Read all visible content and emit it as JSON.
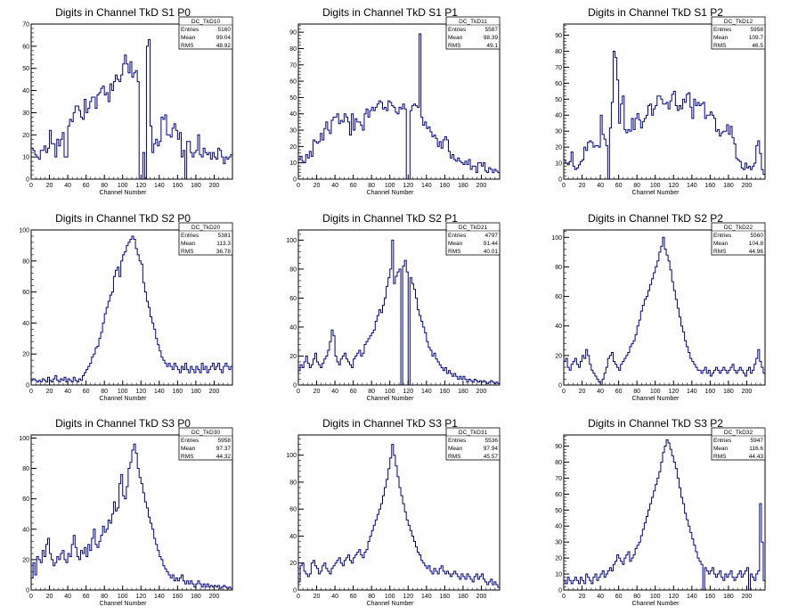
{
  "chart_data": [
    {
      "type": "histogram",
      "title": "Digits in Channel TkD S1 P0",
      "xlabel": "Channel Number",
      "xlim": [
        0,
        220
      ],
      "ylim": [
        0,
        70
      ],
      "xticks": [
        0,
        20,
        40,
        60,
        80,
        100,
        120,
        140,
        160,
        180,
        200
      ],
      "yticks": [
        0,
        10,
        20,
        30,
        40,
        50,
        60,
        70
      ],
      "stats": {
        "name": "DC_TkD10",
        "rows": [
          [
            "Entries",
            "5160"
          ],
          [
            "Mean",
            "99.04"
          ],
          [
            "RMS",
            "48.92"
          ]
        ]
      },
      "x_start": 0,
      "bin_width": 2,
      "values": [
        14,
        13,
        11,
        10,
        9,
        13,
        13,
        15,
        12,
        14,
        22,
        16,
        16,
        10,
        18,
        15,
        18,
        21,
        10,
        10,
        24,
        27,
        26,
        30,
        33,
        33,
        31,
        28,
        27,
        36,
        30,
        32,
        35,
        37,
        37,
        32,
        38,
        39,
        41,
        42,
        38,
        39,
        35,
        43,
        40,
        44,
        47,
        45,
        44,
        47,
        52,
        56,
        52,
        48,
        53,
        46,
        48,
        49,
        44,
        0,
        0,
        12,
        0,
        60,
        63,
        24,
        12,
        16,
        18,
        15,
        17,
        28,
        27,
        29,
        20,
        20,
        19,
        23,
        25,
        22,
        18,
        21,
        10,
        13,
        0,
        17,
        17,
        12,
        10,
        12,
        13,
        20,
        11,
        10,
        14,
        12,
        11,
        12,
        9,
        12,
        10,
        9,
        14,
        13,
        10,
        7,
        10,
        9,
        10,
        11
      ]
    },
    {
      "type": "histogram",
      "title": "Digits in Channel TkD S1 P1",
      "xlabel": "Channel Number",
      "xlim": [
        0,
        220
      ],
      "ylim": [
        0,
        95
      ],
      "xticks": [
        0,
        20,
        40,
        60,
        80,
        100,
        120,
        140,
        160,
        180,
        200
      ],
      "yticks": [
        0,
        10,
        20,
        30,
        40,
        50,
        60,
        70,
        80,
        90
      ],
      "stats": {
        "name": "DC_TkD11",
        "rows": [
          [
            "Entries",
            "5587"
          ],
          [
            "Mean",
            "98.39"
          ],
          [
            "RMS",
            "49.1"
          ]
        ]
      },
      "x_start": 0,
      "bin_width": 2,
      "values": [
        12,
        14,
        11,
        10,
        15,
        13,
        17,
        14,
        24,
        23,
        22,
        23,
        28,
        24,
        31,
        35,
        30,
        28,
        36,
        38,
        38,
        40,
        34,
        36,
        35,
        40,
        38,
        35,
        27,
        40,
        30,
        37,
        35,
        35,
        33,
        30,
        40,
        43,
        38,
        42,
        44,
        42,
        44,
        46,
        48,
        47,
        43,
        44,
        42,
        48,
        47,
        45,
        44,
        41,
        40,
        44,
        43,
        46,
        43,
        0,
        0,
        42,
        45,
        46,
        45,
        44,
        89,
        38,
        33,
        35,
        31,
        32,
        29,
        26,
        27,
        25,
        20,
        23,
        19,
        24,
        26,
        24,
        17,
        13,
        15,
        12,
        11,
        13,
        11,
        10,
        9,
        11,
        9,
        12,
        6,
        8,
        8,
        4,
        10,
        10,
        8,
        10,
        5,
        4,
        7,
        6,
        4,
        6,
        5,
        4
      ]
    },
    {
      "type": "histogram",
      "title": "Digits in Channel TkD S1 P2",
      "xlabel": "Channel Number",
      "xlim": [
        0,
        220
      ],
      "ylim": [
        0,
        97
      ],
      "xticks": [
        0,
        20,
        40,
        60,
        80,
        100,
        120,
        140,
        160,
        180,
        200
      ],
      "yticks": [
        0,
        10,
        20,
        30,
        40,
        50,
        60,
        70,
        80,
        90
      ],
      "stats": {
        "name": "DC_TkD12",
        "rows": [
          [
            "Entries",
            "5958"
          ],
          [
            "Mean",
            "109.7"
          ],
          [
            "RMS",
            "46.5"
          ]
        ]
      },
      "x_start": 0,
      "bin_width": 2,
      "values": [
        12,
        10,
        9,
        11,
        17,
        8,
        6,
        7,
        9,
        11,
        12,
        20,
        18,
        23,
        24,
        23,
        20,
        21,
        21,
        20,
        40,
        28,
        25,
        21,
        0,
        32,
        48,
        80,
        76,
        62,
        35,
        47,
        52,
        31,
        29,
        31,
        30,
        38,
        31,
        38,
        41,
        37,
        32,
        36,
        38,
        40,
        46,
        47,
        40,
        44,
        46,
        52,
        52,
        50,
        47,
        47,
        48,
        44,
        49,
        53,
        55,
        46,
        43,
        46,
        44,
        50,
        48,
        53,
        54,
        45,
        38,
        50,
        46,
        48,
        46,
        47,
        48,
        38,
        40,
        40,
        42,
        40,
        38,
        30,
        31,
        27,
        29,
        30,
        30,
        34,
        28,
        33,
        26,
        22,
        13,
        12,
        11,
        7,
        6,
        10,
        7,
        8,
        6,
        8,
        10,
        21,
        24,
        16,
        6,
        3
      ]
    },
    {
      "type": "histogram",
      "title": "Digits in Channel TkD S2 P0",
      "xlabel": "Channel Number",
      "xlim": [
        0,
        220
      ],
      "ylim": [
        0,
        100
      ],
      "xticks": [
        0,
        20,
        40,
        60,
        80,
        100,
        120,
        140,
        160,
        180,
        200
      ],
      "yticks": [
        0,
        20,
        40,
        60,
        80,
        100
      ],
      "stats": {
        "name": "DC_TkD20",
        "rows": [
          [
            "Entries",
            "5381"
          ],
          [
            "Mean",
            "113.3"
          ],
          [
            "RMS",
            "36.78"
          ]
        ]
      },
      "x_start": 0,
      "bin_width": 2,
      "values": [
        3,
        4,
        3,
        2,
        3,
        2,
        4,
        3,
        2,
        5,
        3,
        2,
        4,
        6,
        3,
        2,
        4,
        3,
        5,
        2,
        4,
        3,
        2,
        5,
        3,
        2,
        4,
        3,
        6,
        8,
        10,
        12,
        14,
        18,
        20,
        24,
        25,
        30,
        34,
        40,
        46,
        50,
        54,
        58,
        60,
        70,
        74,
        76,
        70,
        80,
        84,
        86,
        90,
        92,
        94,
        96,
        94,
        88,
        84,
        80,
        78,
        66,
        60,
        54,
        50,
        44,
        40,
        36,
        30,
        26,
        22,
        18,
        16,
        14,
        12,
        14,
        12,
        10,
        14,
        12,
        10,
        8,
        12,
        10,
        14,
        10,
        8,
        12,
        10,
        8,
        12,
        10,
        8,
        14,
        10,
        12,
        8,
        10,
        12,
        14,
        10,
        12,
        14,
        10,
        8,
        12,
        14,
        12,
        10,
        12
      ]
    },
    {
      "type": "histogram",
      "title": "Digits in Channel TkD S2 P1",
      "xlabel": "Channel Number",
      "xlim": [
        0,
        220
      ],
      "ylim": [
        0,
        107
      ],
      "xticks": [
        0,
        20,
        40,
        60,
        80,
        100,
        120,
        140,
        160,
        180,
        200
      ],
      "yticks": [
        0,
        20,
        40,
        60,
        80,
        100
      ],
      "stats": {
        "name": "DC_TkD21",
        "rows": [
          [
            "Entries",
            "4797"
          ],
          [
            "Mean",
            "91.44"
          ],
          [
            "RMS",
            "40.01"
          ]
        ]
      },
      "x_start": 0,
      "bin_width": 2,
      "values": [
        10,
        14,
        12,
        16,
        20,
        15,
        12,
        14,
        18,
        22,
        16,
        14,
        12,
        15,
        18,
        20,
        24,
        30,
        38,
        34,
        20,
        16,
        14,
        18,
        20,
        22,
        18,
        16,
        14,
        12,
        18,
        20,
        22,
        24,
        20,
        22,
        28,
        30,
        32,
        34,
        36,
        38,
        44,
        48,
        52,
        50,
        55,
        60,
        68,
        74,
        80,
        100,
        70,
        75,
        78,
        80,
        0,
        82,
        86,
        78,
        0,
        74,
        70,
        66,
        60,
        52,
        48,
        44,
        40,
        36,
        30,
        26,
        24,
        20,
        22,
        18,
        16,
        14,
        12,
        10,
        12,
        8,
        10,
        8,
        6,
        8,
        6,
        4,
        6,
        4,
        6,
        4,
        2,
        4,
        3,
        2,
        4,
        3,
        2,
        3,
        2,
        3,
        2,
        1,
        2,
        3,
        2,
        1,
        2,
        1
      ]
    },
    {
      "type": "histogram",
      "title": "Digits in Channel TkD S2 P2",
      "xlabel": "Channel Number",
      "xlim": [
        0,
        220
      ],
      "ylim": [
        0,
        105
      ],
      "xticks": [
        0,
        20,
        40,
        60,
        80,
        100,
        120,
        140,
        160,
        180,
        200
      ],
      "yticks": [
        0,
        20,
        40,
        60,
        80,
        100
      ],
      "stats": {
        "name": "DC_TkD22",
        "rows": [
          [
            "Entries",
            "5560"
          ],
          [
            "Mean",
            "104.8"
          ],
          [
            "RMS",
            "44.96"
          ]
        ]
      },
      "x_start": 0,
      "bin_width": 2,
      "values": [
        16,
        18,
        12,
        10,
        14,
        16,
        18,
        14,
        12,
        16,
        20,
        18,
        24,
        20,
        14,
        10,
        8,
        6,
        4,
        2,
        0,
        4,
        8,
        12,
        18,
        20,
        22,
        16,
        14,
        12,
        10,
        14,
        16,
        18,
        20,
        22,
        26,
        28,
        30,
        34,
        40,
        44,
        50,
        54,
        58,
        60,
        64,
        68,
        72,
        76,
        80,
        84,
        90,
        94,
        100,
        92,
        88,
        84,
        78,
        70,
        64,
        58,
        52,
        46,
        40,
        36,
        30,
        26,
        22,
        18,
        16,
        14,
        12,
        10,
        10,
        8,
        10,
        12,
        8,
        10,
        6,
        8,
        10,
        12,
        10,
        8,
        10,
        12,
        10,
        8,
        10,
        12,
        14,
        10,
        8,
        10,
        12,
        10,
        8,
        6,
        10,
        12,
        8,
        10,
        14,
        18,
        24,
        16,
        12,
        8
      ]
    },
    {
      "type": "histogram",
      "title": "Digits in Channel TkD S3 P0",
      "xlabel": "Channel Number",
      "xlim": [
        0,
        220
      ],
      "ylim": [
        0,
        102
      ],
      "xticks": [
        0,
        20,
        40,
        60,
        80,
        100,
        120,
        140,
        160,
        180,
        200
      ],
      "yticks": [
        0,
        20,
        40,
        60,
        80,
        100
      ],
      "stats": {
        "name": "DC_TkD30",
        "rows": [
          [
            "Entries",
            "5958"
          ],
          [
            "Mean",
            "97.37"
          ],
          [
            "RMS",
            "44.32"
          ]
        ]
      },
      "x_start": 0,
      "bin_width": 2,
      "values": [
        8,
        18,
        10,
        22,
        20,
        18,
        26,
        22,
        30,
        34,
        24,
        20,
        16,
        18,
        22,
        20,
        24,
        26,
        20,
        18,
        24,
        22,
        30,
        36,
        28,
        22,
        20,
        26,
        24,
        28,
        22,
        30,
        26,
        34,
        40,
        30,
        28,
        32,
        36,
        42,
        38,
        40,
        46,
        44,
        50,
        58,
        52,
        54,
        70,
        76,
        62,
        60,
        68,
        80,
        84,
        92,
        96,
        90,
        80,
        74,
        70,
        64,
        58,
        54,
        48,
        44,
        40,
        34,
        30,
        26,
        22,
        20,
        16,
        14,
        12,
        10,
        8,
        10,
        6,
        8,
        6,
        8,
        10,
        6,
        4,
        6,
        4,
        6,
        4,
        2,
        4,
        6,
        4,
        2,
        4,
        2,
        4,
        2,
        3,
        2,
        3,
        2,
        3,
        1,
        2,
        3,
        2,
        1,
        2,
        1
      ]
    },
    {
      "type": "histogram",
      "title": "Digits in Channel TkD S3 P1",
      "xlabel": "Channel Number",
      "xlim": [
        0,
        220
      ],
      "ylim": [
        0,
        115
      ],
      "xticks": [
        0,
        20,
        40,
        60,
        80,
        100,
        120,
        140,
        160,
        180,
        200
      ],
      "yticks": [
        0,
        20,
        40,
        60,
        80,
        100
      ],
      "stats": {
        "name": "DC_TkD31",
        "rows": [
          [
            "Entries",
            "5536"
          ],
          [
            "Mean",
            "97.94"
          ],
          [
            "RMS",
            "45.57"
          ]
        ]
      },
      "x_start": 0,
      "bin_width": 2,
      "values": [
        6,
        18,
        20,
        14,
        12,
        10,
        12,
        20,
        22,
        18,
        16,
        12,
        14,
        18,
        20,
        16,
        14,
        12,
        16,
        18,
        20,
        22,
        24,
        20,
        18,
        22,
        24,
        26,
        22,
        20,
        24,
        26,
        28,
        30,
        26,
        24,
        28,
        30,
        36,
        40,
        44,
        48,
        52,
        56,
        60,
        64,
        70,
        76,
        82,
        90,
        98,
        108,
        100,
        92,
        84,
        76,
        70,
        64,
        58,
        52,
        48,
        44,
        40,
        36,
        32,
        28,
        26,
        22,
        20,
        18,
        16,
        18,
        14,
        12,
        16,
        14,
        12,
        16,
        18,
        14,
        12,
        14,
        12,
        10,
        12,
        14,
        12,
        10,
        8,
        12,
        10,
        8,
        12,
        10,
        8,
        6,
        10,
        12,
        8,
        10,
        12,
        8,
        6,
        4,
        6,
        8,
        4,
        6,
        4,
        2
      ]
    },
    {
      "type": "histogram",
      "title": "Digits in Channel TkD S3 P2",
      "xlabel": "Channel Number",
      "xlim": [
        0,
        220
      ],
      "ylim": [
        0,
        97
      ],
      "xticks": [
        0,
        20,
        40,
        60,
        80,
        100,
        120,
        140,
        160,
        180,
        200
      ],
      "yticks": [
        0,
        10,
        20,
        30,
        40,
        50,
        60,
        70,
        80,
        90
      ],
      "stats": {
        "name": "DC_TkD32",
        "rows": [
          [
            "Entries",
            "5947"
          ],
          [
            "Mean",
            "116.6"
          ],
          [
            "RMS",
            "44.43"
          ]
        ]
      },
      "x_start": 0,
      "bin_width": 2,
      "values": [
        6,
        4,
        8,
        6,
        4,
        6,
        8,
        6,
        4,
        8,
        6,
        4,
        10,
        8,
        6,
        4,
        8,
        10,
        6,
        8,
        10,
        12,
        8,
        10,
        12,
        14,
        12,
        16,
        18,
        22,
        20,
        18,
        16,
        20,
        22,
        24,
        18,
        20,
        22,
        26,
        28,
        30,
        34,
        38,
        42,
        46,
        50,
        54,
        58,
        62,
        66,
        70,
        74,
        80,
        86,
        90,
        94,
        92,
        88,
        84,
        80,
        76,
        70,
        64,
        58,
        54,
        48,
        44,
        40,
        36,
        32,
        28,
        24,
        20,
        18,
        16,
        0,
        14,
        12,
        10,
        12,
        14,
        10,
        8,
        10,
        12,
        8,
        6,
        10,
        8,
        10,
        12,
        8,
        6,
        8,
        10,
        12,
        8,
        10,
        12,
        14,
        0,
        10,
        8,
        6,
        10,
        12,
        54,
        30,
        6
      ]
    }
  ],
  "style": {
    "line_color": "#00007f",
    "axis_color": "#000000",
    "background": "#ffffff"
  }
}
